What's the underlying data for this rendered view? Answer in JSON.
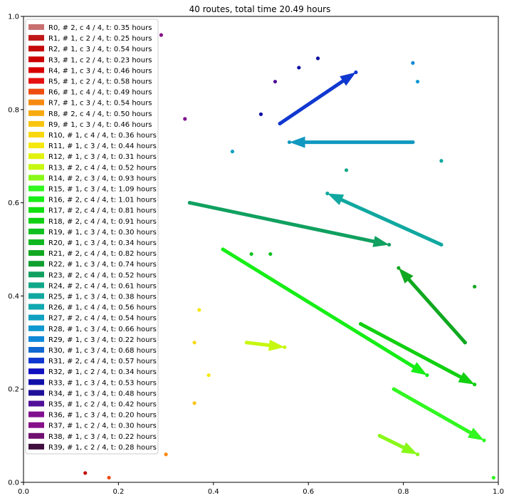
{
  "chart_data": {
    "type": "scatter",
    "title": "40 routes, total time 20.49 hours",
    "xlabel": "",
    "ylabel": "",
    "xlim": [
      0,
      1
    ],
    "ylim": [
      0,
      1
    ],
    "x_ticks": [
      "0.0",
      "0.2",
      "0.4",
      "0.6",
      "0.8",
      "1.0"
    ],
    "y_ticks": [
      "0.0",
      "0.2",
      "0.4",
      "0.6",
      "0.8",
      "1.0"
    ],
    "grid": false,
    "legend_position": "upper-left",
    "routes": [
      {
        "label": "R0, # 2, c 4 / 4, t: 0.35 hours",
        "color": "#c87070"
      },
      {
        "label": "R1, # 1, c 2 / 4, t: 0.25 hours",
        "color": "#c01818"
      },
      {
        "label": "R2, # 1, c 3 / 4, t: 0.54 hours",
        "color": "#c40a0a"
      },
      {
        "label": "R3, # 1, c 2 / 4, t: 0.23 hours",
        "color": "#cc0000"
      },
      {
        "label": "R4, # 1, c 3 / 4, t: 0.46 hours",
        "color": "#d80000"
      },
      {
        "label": "R5, # 1, c 2 / 4, t: 0.58 hours",
        "color": "#e61010"
      },
      {
        "label": "R6, # 1, c 4 / 4, t: 0.49 hours",
        "color": "#ee4c10"
      },
      {
        "label": "R7, # 1, c 3 / 4, t: 0.54 hours",
        "color": "#f68a10"
      },
      {
        "label": "R8, # 2, c 4 / 4, t: 0.50 hours",
        "color": "#f7aa10"
      },
      {
        "label": "R9, # 1, c 3 / 4, t: 0.46 hours",
        "color": "#f9c410"
      },
      {
        "label": "R10, # 1, c 4 / 4, t: 0.36 hours",
        "color": "#f9d810"
      },
      {
        "label": "R11, # 1, c 3 / 4, t: 0.44 hours",
        "color": "#f5e810"
      },
      {
        "label": "R12, # 1, c 3 / 4, t: 0.31 hours",
        "color": "#e2f210"
      },
      {
        "label": "R13, # 2, c 4 / 4, t: 0.52 hours",
        "color": "#c6f810"
      },
      {
        "label": "R14, # 2, c 3 / 4, t: 0.93 hours",
        "color": "#88f818"
      },
      {
        "label": "R15, # 1, c 3 / 4, t: 1.09 hours",
        "color": "#30f820"
      },
      {
        "label": "R16, # 2, c 4 / 4, t: 1.01 hours",
        "color": "#16ee16"
      },
      {
        "label": "R17, # 2, c 4 / 4, t: 0.81 hours",
        "color": "#10e010"
      },
      {
        "label": "R18, # 2, c 4 / 4, t: 0.91 hours",
        "color": "#10d010"
      },
      {
        "label": "R19, # 1, c 3 / 4, t: 0.30 hours",
        "color": "#10c020"
      },
      {
        "label": "R20, # 1, c 3 / 4, t: 0.34 hours",
        "color": "#10b820"
      },
      {
        "label": "R21, # 2, c 4 / 4, t: 0.82 hours",
        "color": "#10a820"
      },
      {
        "label": "R22, # 1, c 3 / 4, t: 0.74 hours",
        "color": "#10a030"
      },
      {
        "label": "R23, # 2, c 4 / 4, t: 0.52 hours",
        "color": "#10a060"
      },
      {
        "label": "R24, # 2, c 4 / 4, t: 0.61 hours",
        "color": "#10a88a"
      },
      {
        "label": "R25, # 1, c 3 / 4, t: 0.38 hours",
        "color": "#10a8a0"
      },
      {
        "label": "R26, # 1, c 4 / 4, t: 0.56 hours",
        "color": "#10a8b0"
      },
      {
        "label": "R27, # 2, c 4 / 4, t: 0.54 hours",
        "color": "#10a0c0"
      },
      {
        "label": "R28, # 1, c 3 / 4, t: 0.66 hours",
        "color": "#1098d0"
      },
      {
        "label": "R29, # 1, c 3 / 4, t: 0.22 hours",
        "color": "#1088d8"
      },
      {
        "label": "R30, # 1, c 3 / 4, t: 0.68 hours",
        "color": "#1068d0"
      },
      {
        "label": "R31, # 2, c 4 / 4, t: 0.57 hours",
        "color": "#1038d0"
      },
      {
        "label": "R32, # 1, c 2 / 4, t: 0.34 hours",
        "color": "#1010c0"
      },
      {
        "label": "R33, # 1, c 3 / 4, t: 0.53 hours",
        "color": "#1010a8"
      },
      {
        "label": "R34, # 1, c 3 / 4, t: 0.48 hours",
        "color": "#201098"
      },
      {
        "label": "R35, # 1, c 2 / 4, t: 0.42 hours",
        "color": "#501098"
      },
      {
        "label": "R36, # 1, c 3 / 4, t: 0.20 hours",
        "color": "#801090"
      },
      {
        "label": "R37, # 1, c 2 / 4, t: 0.30 hours",
        "color": "#861088"
      },
      {
        "label": "R38, # 1, c 3 / 4, t: 0.22 hours",
        "color": "#701070"
      },
      {
        "label": "R39, # 1, c 2 / 4, t: 0.28 hours",
        "color": "#401040"
      }
    ],
    "arrows": [
      {
        "x0": 0.54,
        "y0": 0.77,
        "x1": 0.7,
        "y1": 0.88,
        "color": "#1038d0"
      },
      {
        "x0": 0.82,
        "y0": 0.73,
        "x1": 0.56,
        "y1": 0.73,
        "color": "#1098c0"
      },
      {
        "x0": 0.88,
        "y0": 0.51,
        "x1": 0.64,
        "y1": 0.62,
        "color": "#10a8a0"
      },
      {
        "x0": 0.35,
        "y0": 0.6,
        "x1": 0.77,
        "y1": 0.51,
        "color": "#10a060"
      },
      {
        "x0": 0.93,
        "y0": 0.3,
        "x1": 0.79,
        "y1": 0.46,
        "color": "#10a820"
      },
      {
        "x0": 0.42,
        "y0": 0.5,
        "x1": 0.85,
        "y1": 0.23,
        "color": "#16ee16"
      },
      {
        "x0": 0.71,
        "y0": 0.34,
        "x1": 0.95,
        "y1": 0.21,
        "color": "#10d010"
      },
      {
        "x0": 0.78,
        "y0": 0.2,
        "x1": 0.97,
        "y1": 0.09,
        "color": "#30f820"
      },
      {
        "x0": 0.75,
        "y0": 0.1,
        "x1": 0.83,
        "y1": 0.06,
        "color": "#88f818"
      },
      {
        "x0": 0.47,
        "y0": 0.3,
        "x1": 0.55,
        "y1": 0.29,
        "color": "#c6f810"
      }
    ],
    "points": [
      {
        "x": 0.13,
        "y": 0.02,
        "color": "#c40a0a"
      },
      {
        "x": 0.18,
        "y": 0.01,
        "color": "#ee4c10"
      },
      {
        "x": 0.3,
        "y": 0.06,
        "color": "#f68a10"
      },
      {
        "x": 0.36,
        "y": 0.17,
        "color": "#f9c410"
      },
      {
        "x": 0.36,
        "y": 0.3,
        "color": "#f9d810"
      },
      {
        "x": 0.37,
        "y": 0.37,
        "color": "#f5e810"
      },
      {
        "x": 0.39,
        "y": 0.23,
        "color": "#f5e810"
      },
      {
        "x": 0.48,
        "y": 0.49,
        "color": "#10c020"
      },
      {
        "x": 0.52,
        "y": 0.49,
        "color": "#10c020"
      },
      {
        "x": 0.95,
        "y": 0.42,
        "color": "#10a820"
      },
      {
        "x": 0.99,
        "y": 0.01,
        "color": "#30f820"
      },
      {
        "x": 0.68,
        "y": 0.67,
        "color": "#10a88a"
      },
      {
        "x": 0.88,
        "y": 0.69,
        "color": "#10a8a0"
      },
      {
        "x": 0.44,
        "y": 0.71,
        "color": "#10a0c0"
      },
      {
        "x": 0.82,
        "y": 0.9,
        "color": "#1088d8"
      },
      {
        "x": 0.83,
        "y": 0.86,
        "color": "#1098d0"
      },
      {
        "x": 0.5,
        "y": 0.79,
        "color": "#1010a8"
      },
      {
        "x": 0.58,
        "y": 0.89,
        "color": "#1010a8"
      },
      {
        "x": 0.62,
        "y": 0.91,
        "color": "#1010a0"
      },
      {
        "x": 0.53,
        "y": 0.86,
        "color": "#501098"
      },
      {
        "x": 0.34,
        "y": 0.78,
        "color": "#801090"
      },
      {
        "x": 0.29,
        "y": 0.96,
        "color": "#861088"
      }
    ]
  }
}
